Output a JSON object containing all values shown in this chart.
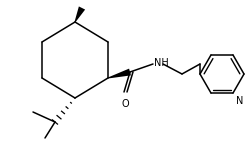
{
  "bg_color": "#ffffff",
  "line_color": "#000000",
  "line_width": 1.1,
  "font_size": 6.5,
  "figsize": [
    2.49,
    1.49
  ],
  "dpi": 100,
  "xlim": [
    0,
    249
  ],
  "ylim": [
    0,
    149
  ]
}
